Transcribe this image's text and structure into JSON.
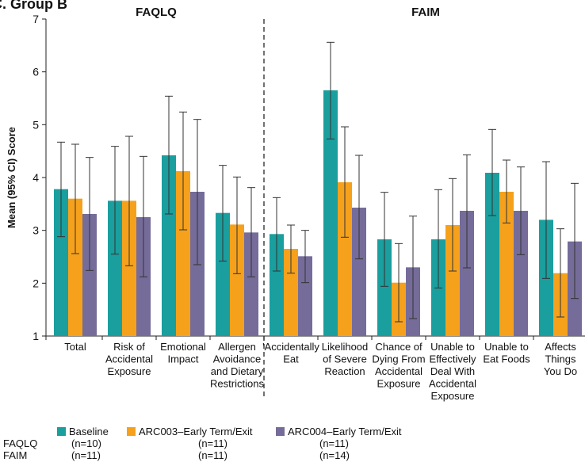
{
  "panel_label": "C. Group B",
  "colors": {
    "baseline": "#1a9e9e",
    "arc003": "#f5a11c",
    "arc004": "#756c9a",
    "axis": "#222222",
    "errorbar": "#333333"
  },
  "chart_data": {
    "type": "bar",
    "ylabel": "Mean (95% CI) Score",
    "ylim": [
      1,
      7
    ],
    "yticks": [
      1,
      2,
      3,
      4,
      5,
      6,
      7
    ],
    "grid": false,
    "legend_position": "bottom-left",
    "sections": [
      {
        "name": "FAQLQ",
        "categories": [
          0,
          1,
          2,
          3
        ]
      },
      {
        "name": "FAIM",
        "categories": [
          4,
          5,
          6,
          7,
          8,
          9
        ]
      }
    ],
    "categories": [
      [
        "Total"
      ],
      [
        "Risk of",
        "Accidental",
        "Exposure"
      ],
      [
        "Emotional",
        "Impact"
      ],
      [
        "Allergen",
        "Avoidance",
        "and Dietary",
        "Restrictions"
      ],
      [
        "'Accidentally",
        "Eat"
      ],
      [
        "Likelihood",
        "of Severe",
        "Reaction"
      ],
      [
        "Chance of",
        "Dying From",
        "Accidental",
        "Exposure"
      ],
      [
        "Unable to",
        "Effectively",
        "Deal With",
        "Accidental",
        "Exposure"
      ],
      [
        "Unable to",
        "Eat Foods"
      ],
      [
        "Affects",
        "Things",
        "You Do"
      ]
    ],
    "series": [
      {
        "name": "Baseline",
        "color_key": "baseline",
        "values": [
          3.78,
          3.56,
          4.42,
          3.33,
          2.93,
          5.65,
          2.83,
          2.83,
          4.09,
          3.2
        ],
        "ci_low": [
          2.88,
          2.55,
          3.31,
          2.42,
          2.23,
          4.73,
          1.94,
          1.91,
          3.28,
          2.09
        ],
        "ci_high": [
          4.67,
          4.59,
          5.54,
          4.23,
          3.62,
          6.56,
          3.72,
          3.77,
          4.91,
          4.3
        ]
      },
      {
        "name": "ARC003–Early Term/Exit",
        "color_key": "arc003",
        "values": [
          3.6,
          3.56,
          4.12,
          3.11,
          2.65,
          3.91,
          2.01,
          3.1,
          3.73,
          2.19
        ],
        "ci_low": [
          2.56,
          2.33,
          3.01,
          2.18,
          2.19,
          2.87,
          1.27,
          2.23,
          3.14,
          1.36
        ],
        "ci_high": [
          4.63,
          4.78,
          5.24,
          4.01,
          3.1,
          4.96,
          2.75,
          3.98,
          4.33,
          3.03
        ]
      },
      {
        "name": "ARC004–Early Term/Exit",
        "color_key": "arc004",
        "values": [
          3.31,
          3.25,
          3.73,
          2.96,
          2.51,
          3.43,
          2.3,
          3.37,
          3.37,
          2.79
        ],
        "ci_low": [
          2.24,
          2.12,
          2.35,
          2.12,
          2.01,
          2.46,
          1.33,
          2.29,
          2.54,
          1.71
        ],
        "ci_high": [
          4.38,
          4.4,
          5.1,
          3.81,
          3.0,
          4.42,
          3.27,
          4.43,
          4.2,
          3.89
        ]
      }
    ]
  },
  "legend": {
    "entries": [
      "Baseline",
      "ARC003–Early Term/Exit",
      "ARC004–Early Term/Exit"
    ],
    "rows": [
      {
        "label": "FAQLQ",
        "n": [
          "(n=10)",
          "(n=11)",
          "(n=11)"
        ]
      },
      {
        "label": "FAIM",
        "n": [
          "(n=11)",
          "(n=11)",
          "(n=14)"
        ]
      }
    ]
  }
}
